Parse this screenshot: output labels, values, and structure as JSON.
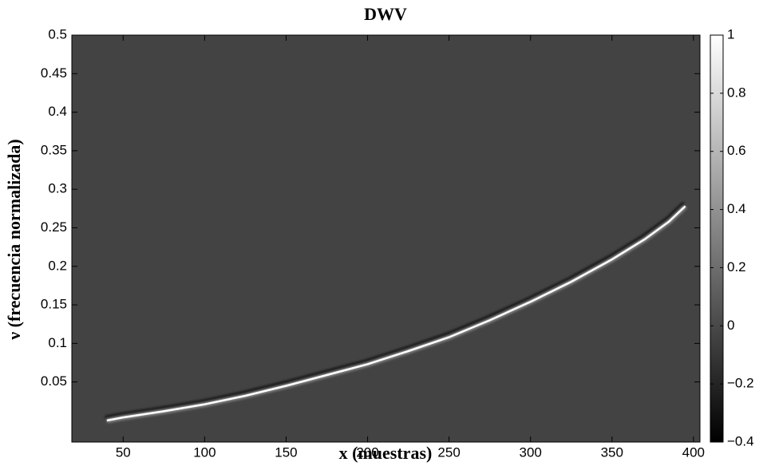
{
  "chart_data": {
    "type": "heatmap",
    "title": "DWV",
    "x_label": "x (muestras)",
    "y_label": "ν (frecuencia normalizada)",
    "xlim": [
      18.5,
      404
    ],
    "xticks": [
      50,
      100,
      150,
      200,
      250,
      300,
      350,
      400
    ],
    "ylim": [
      -0.028,
      0.5
    ],
    "yticks": [
      0.05,
      0.1,
      0.15,
      0.2,
      0.25,
      0.3,
      0.35,
      0.4,
      0.45,
      0.5
    ],
    "colormap": "gray",
    "background": 0,
    "colorbar": {
      "lim": [
        -0.4,
        1
      ],
      "ticks": [
        {
          "value": -0.4,
          "label": "−0.4"
        },
        {
          "value": -0.2,
          "label": "−0.2"
        },
        0,
        0.2,
        0.4,
        0.6,
        0.8,
        1
      ]
    },
    "curve": {
      "color": "#ffffff",
      "x": [
        40,
        50,
        75,
        100,
        125,
        150,
        175,
        200,
        225,
        250,
        275,
        300,
        325,
        350,
        370,
        385,
        395
      ],
      "y": [
        0.0,
        0.004,
        0.012,
        0.021,
        0.032,
        0.045,
        0.059,
        0.073,
        0.09,
        0.108,
        0.13,
        0.154,
        0.18,
        0.209,
        0.235,
        0.258,
        0.278
      ]
    }
  }
}
